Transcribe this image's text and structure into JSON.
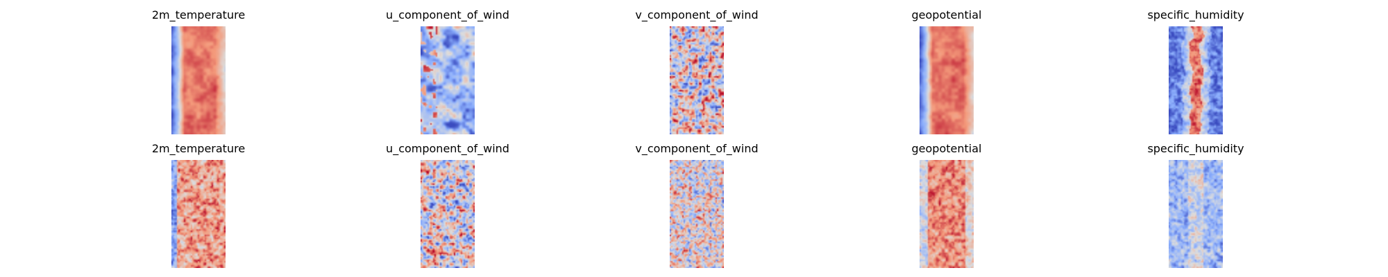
{
  "chart_data": [
    {
      "type": "heatmap",
      "row": 1,
      "title": "2m_temperature",
      "colormap": "coolwarm",
      "axes": "off",
      "pattern": "warm_band_cold_west_edge"
    },
    {
      "type": "heatmap",
      "row": 1,
      "title": "u_component_of_wind",
      "colormap": "coolwarm",
      "axes": "off",
      "pattern": "mostly_cool_with_streaks"
    },
    {
      "type": "heatmap",
      "row": 1,
      "title": "v_component_of_wind",
      "colormap": "coolwarm",
      "axes": "off",
      "pattern": "noisy_mixed"
    },
    {
      "type": "heatmap",
      "row": 1,
      "title": "geopotential",
      "colormap": "coolwarm",
      "axes": "off",
      "pattern": "warm_band_cold_west_edge"
    },
    {
      "type": "heatmap",
      "row": 1,
      "title": "specific_humidity",
      "colormap": "coolwarm",
      "axes": "off",
      "pattern": "narrow_warm_core_cold_sides"
    },
    {
      "type": "heatmap",
      "row": 2,
      "title": "2m_temperature",
      "colormap": "coolwarm",
      "axes": "off",
      "pattern": "warm_noisy"
    },
    {
      "type": "heatmap",
      "row": 2,
      "title": "u_component_of_wind",
      "colormap": "coolwarm",
      "axes": "off",
      "pattern": "noisy_mixed"
    },
    {
      "type": "heatmap",
      "row": 2,
      "title": "v_component_of_wind",
      "colormap": "coolwarm",
      "axes": "off",
      "pattern": "noisy_mixed_pale"
    },
    {
      "type": "heatmap",
      "row": 2,
      "title": "geopotential",
      "colormap": "coolwarm",
      "axes": "off",
      "pattern": "warm_band_pale_edges"
    },
    {
      "type": "heatmap",
      "row": 2,
      "title": "specific_humidity",
      "colormap": "coolwarm",
      "axes": "off",
      "pattern": "cool_with_pale_core"
    }
  ]
}
